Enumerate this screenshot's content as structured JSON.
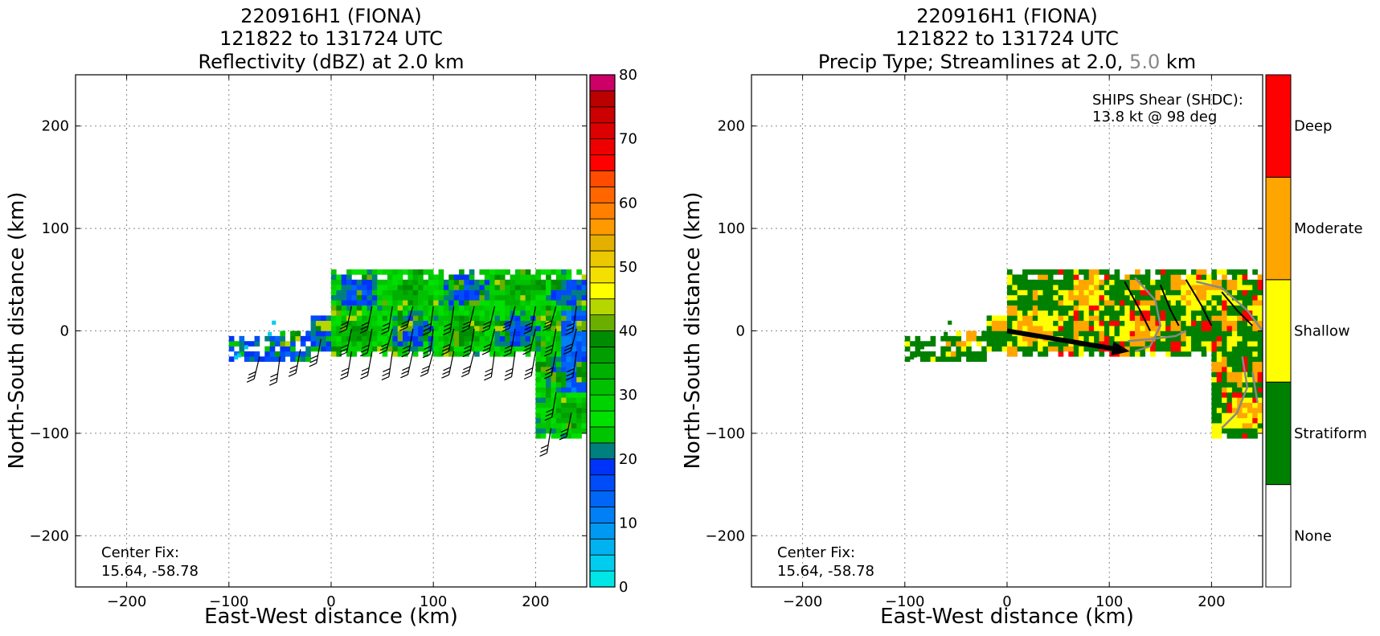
{
  "chart_data": [
    {
      "type": "heatmap",
      "title_lines": [
        "220916H1 (FIONA)",
        "121822 to 131724 UTC",
        "Reflectivity (dBZ) at 2.0 km"
      ],
      "xlabel": "East-West distance (km)",
      "ylabel": "North-South distance (km)",
      "xlim": [
        -250,
        250
      ],
      "ylim": [
        -250,
        250
      ],
      "xticks": [
        -200,
        -100,
        0,
        100,
        200
      ],
      "yticks": [
        -200,
        -100,
        0,
        100,
        200
      ],
      "tick_labels_x": [
        "−200",
        "−100",
        "0",
        "100",
        "200"
      ],
      "tick_labels_y": [
        "−200",
        "−100",
        "0",
        "100",
        "200"
      ],
      "grid": true,
      "annotation": "Center Fix:\n15.64, -58.78",
      "annotation_lines": [
        "Center Fix:",
        "15.64, -58.78"
      ],
      "colorbar": {
        "range": [
          0,
          80
        ],
        "step": 2.5,
        "tick_values": [
          0,
          10,
          20,
          30,
          40,
          50,
          60,
          70,
          80
        ],
        "tick_labels": [
          "0",
          "10",
          "20",
          "30",
          "40",
          "50",
          "60",
          "70",
          "80"
        ],
        "colors": [
          "#00e5e5",
          "#00ccee",
          "#00b2f0",
          "#0099f2",
          "#0080f4",
          "#0066f6",
          "#004cf8",
          "#0033fa",
          "#007f7f",
          "#00c400",
          "#00e000",
          "#00d200",
          "#00c000",
          "#00b000",
          "#009e00",
          "#008c00",
          "#6aae00",
          "#b6d600",
          "#ffff00",
          "#f4e000",
          "#ecc800",
          "#e4b000",
          "#ff9900",
          "#ff7f00",
          "#ff6600",
          "#ff4c00",
          "#ff0000",
          "#ee0000",
          "#dd0000",
          "#cc0000",
          "#bb0000",
          "#cc0066",
          "#dd0099",
          "#ee00dd",
          "#ff00ff",
          "#cc44dd",
          "#aa55cc",
          "#8844aa",
          "#552255",
          "#111111",
          "#000000"
        ]
      }
    },
    {
      "type": "heatmap",
      "title_lines": [
        "220916H1 (FIONA)",
        "121822 to 131724 UTC",
        "Precip Type; Streamlines at 2.0,",
        "5.0",
        "km"
      ],
      "xlabel": "East-West distance (km)",
      "ylabel": "North-South distance (km)",
      "xlim": [
        -250,
        250
      ],
      "ylim": [
        -250,
        250
      ],
      "xticks": [
        -200,
        -100,
        0,
        100,
        200
      ],
      "yticks": [
        -200,
        -100,
        0,
        100,
        200
      ],
      "tick_labels_x": [
        "−200",
        "−100",
        "0",
        "100",
        "200"
      ],
      "tick_labels_y": [
        "−200",
        "−100",
        "0",
        "100",
        "200"
      ],
      "grid": true,
      "annotation_lines": [
        "Center Fix:",
        "15.64, -58.78"
      ],
      "shear_text_lines": [
        "SHIPS Shear (SHDC):",
        "13.8 kt @ 98 deg"
      ],
      "shear_vector": {
        "from": [
          0,
          0
        ],
        "to": [
          120,
          -20
        ]
      },
      "categories": [
        "None",
        "Stratiform",
        "Shallow",
        "Moderate",
        "Deep"
      ],
      "category_colors": [
        "#ffffff",
        "#008000",
        "#ffff00",
        "#ffa500",
        "#ff0000"
      ]
    }
  ]
}
